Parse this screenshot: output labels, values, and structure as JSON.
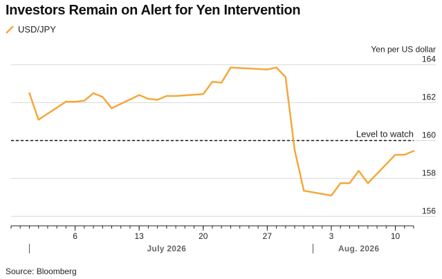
{
  "title": "Investors Remain on Alert for Yen Intervention",
  "source": "Source: Bloomberg",
  "colors": {
    "series": "#F5A73B",
    "grid": "#d8d8d8",
    "axis": "#222222",
    "threshold": "#111111"
  },
  "chart_data": {
    "type": "line",
    "ylabel": "Yen per US dollar",
    "ylim": [
      155.5,
      164.5
    ],
    "y_ticks": [
      156,
      158,
      160,
      162,
      164
    ],
    "xlim": [
      "2026-06-29",
      "2026-08-12"
    ],
    "x_ticks": [
      {
        "date": "2026-07-06",
        "label": "6"
      },
      {
        "date": "2026-07-13",
        "label": "13"
      },
      {
        "date": "2026-07-20",
        "label": "20"
      },
      {
        "date": "2026-07-27",
        "label": "27"
      },
      {
        "date": "2026-08-03",
        "label": "3"
      },
      {
        "date": "2026-08-10",
        "label": "10"
      }
    ],
    "months": [
      {
        "date": "2026-07-01",
        "label_date": "2026-07-16",
        "label": "July 2026"
      },
      {
        "date": "2026-08-01",
        "label_date": "2026-08-06",
        "label": "Aug. 2026"
      }
    ],
    "threshold": {
      "value": 160,
      "label": "Level to watch"
    },
    "grid": true,
    "series": [
      {
        "name": "USD/JPY",
        "points": [
          [
            "2026-07-01",
            162.5
          ],
          [
            "2026-07-02",
            161.1
          ],
          [
            "2026-07-05",
            162.05
          ],
          [
            "2026-07-06",
            162.05
          ],
          [
            "2026-07-07",
            162.1
          ],
          [
            "2026-07-08",
            162.5
          ],
          [
            "2026-07-09",
            162.3
          ],
          [
            "2026-07-10",
            161.7
          ],
          [
            "2026-07-13",
            162.4
          ],
          [
            "2026-07-14",
            162.2
          ],
          [
            "2026-07-15",
            162.15
          ],
          [
            "2026-07-16",
            162.35
          ],
          [
            "2026-07-17",
            162.35
          ],
          [
            "2026-07-20",
            162.45
          ],
          [
            "2026-07-21",
            163.1
          ],
          [
            "2026-07-22",
            163.05
          ],
          [
            "2026-07-23",
            163.85
          ],
          [
            "2026-07-27",
            163.75
          ],
          [
            "2026-07-28",
            163.85
          ],
          [
            "2026-07-29",
            163.35
          ],
          [
            "2026-07-30",
            159.5
          ],
          [
            "2026-07-31",
            157.35
          ],
          [
            "2026-08-03",
            157.1
          ],
          [
            "2026-08-04",
            157.75
          ],
          [
            "2026-08-05",
            157.75
          ],
          [
            "2026-08-06",
            158.4
          ],
          [
            "2026-08-07",
            157.75
          ],
          [
            "2026-08-10",
            159.25
          ],
          [
            "2026-08-11",
            159.25
          ],
          [
            "2026-08-12",
            159.45
          ]
        ]
      }
    ]
  }
}
